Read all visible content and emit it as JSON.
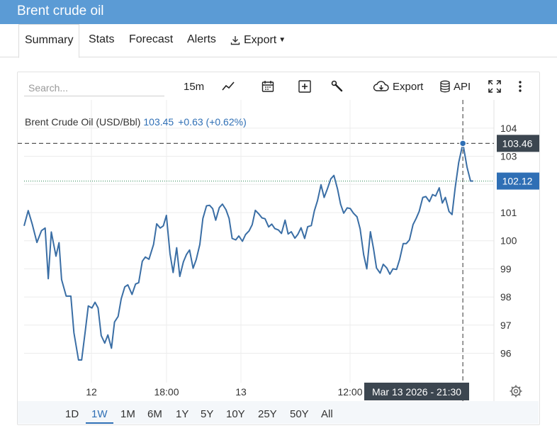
{
  "app": {
    "title": "Brent crude oil"
  },
  "tabs": [
    {
      "label": "Summary",
      "active": true
    },
    {
      "label": "Stats"
    },
    {
      "label": "Forecast"
    },
    {
      "label": "Alerts"
    },
    {
      "label": "Export",
      "icon": "download-icon",
      "dropdown": true
    }
  ],
  "toolbar": {
    "search_placeholder": "Search...",
    "interval": "15m",
    "export_label": "Export",
    "api_label": "API",
    "icons": [
      "line-chart-icon",
      "calendar-icon",
      "add-icon",
      "wrench-icon",
      "cloud-download-icon",
      "database-icon",
      "fullscreen-icon",
      "more-vert-icon",
      "settings-icon"
    ]
  },
  "chart_header": {
    "name": "Brent Crude Oil (USD/Bbl)",
    "price": "103.45",
    "change": "+0.63 (+0.62%)"
  },
  "crosshair": {
    "price_label": "103.46",
    "time_label": "Mar 13 2026 - 21:30"
  },
  "last_price": {
    "label": "102.12",
    "value": 102.12
  },
  "ranges": [
    {
      "label": "1D"
    },
    {
      "label": "1W",
      "active": true
    },
    {
      "label": "1M"
    },
    {
      "label": "6M"
    },
    {
      "label": "1Y"
    },
    {
      "label": "5Y"
    },
    {
      "label": "10Y"
    },
    {
      "label": "25Y"
    },
    {
      "label": "50Y"
    },
    {
      "label": "All"
    }
  ],
  "colors": {
    "title_bar": "#5b9bd5",
    "line": "#3a6ea5",
    "accent": "#2f6fb5",
    "label_dark": "#3c4650"
  },
  "chart_data": {
    "type": "line",
    "title": "Brent Crude Oil (USD/Bbl)",
    "ylim": [
      95,
      105
    ],
    "y_ticks": [
      "96",
      "97",
      "98",
      "99",
      "100",
      "101",
      "102",
      "103",
      "104"
    ],
    "x_ticks": [
      "12",
      "18:00",
      "13",
      "12:00"
    ],
    "grid": true,
    "series": [
      {
        "name": "Brent Crude Oil (USD/Bbl)",
        "points": [
          [
            0.0,
            100.53
          ],
          [
            0.8,
            101.07
          ],
          [
            1.6,
            100.58
          ],
          [
            2.5,
            99.94
          ],
          [
            3.4,
            100.36
          ],
          [
            4.1,
            100.45
          ],
          [
            4.7,
            98.65
          ],
          [
            5.3,
            100.31
          ],
          [
            6.2,
            99.45
          ],
          [
            6.8,
            99.93
          ],
          [
            7.3,
            98.62
          ],
          [
            8.2,
            98.03
          ],
          [
            9.1,
            98.03
          ],
          [
            9.7,
            96.73
          ],
          [
            10.6,
            95.76
          ],
          [
            11.2,
            95.76
          ],
          [
            11.9,
            96.78
          ],
          [
            12.5,
            97.68
          ],
          [
            13.2,
            97.61
          ],
          [
            13.8,
            97.81
          ],
          [
            14.4,
            97.61
          ],
          [
            15.0,
            96.63
          ],
          [
            15.7,
            96.36
          ],
          [
            16.3,
            96.65
          ],
          [
            17.0,
            96.18
          ],
          [
            17.6,
            97.11
          ],
          [
            18.3,
            97.31
          ],
          [
            18.9,
            97.93
          ],
          [
            19.6,
            98.36
          ],
          [
            20.2,
            98.43
          ],
          [
            21.0,
            98.09
          ],
          [
            21.7,
            98.46
          ],
          [
            22.3,
            98.51
          ],
          [
            23.0,
            99.27
          ],
          [
            23.6,
            99.42
          ],
          [
            24.3,
            99.34
          ],
          [
            25.2,
            99.87
          ],
          [
            25.8,
            100.6
          ],
          [
            26.5,
            100.45
          ],
          [
            27.1,
            100.53
          ],
          [
            27.7,
            100.9
          ],
          [
            28.4,
            99.54
          ],
          [
            29.0,
            98.87
          ],
          [
            29.7,
            99.75
          ],
          [
            30.3,
            98.73
          ],
          [
            31.0,
            99.25
          ],
          [
            31.6,
            99.51
          ],
          [
            32.2,
            99.67
          ],
          [
            32.9,
            99.02
          ],
          [
            33.5,
            99.33
          ],
          [
            34.2,
            99.87
          ],
          [
            34.8,
            100.79
          ],
          [
            35.5,
            101.24
          ],
          [
            36.1,
            101.26
          ],
          [
            36.7,
            101.14
          ],
          [
            37.3,
            100.73
          ],
          [
            38.0,
            101.18
          ],
          [
            38.6,
            101.3
          ],
          [
            39.3,
            101.1
          ],
          [
            39.9,
            100.79
          ],
          [
            40.5,
            100.08
          ],
          [
            41.2,
            100.03
          ],
          [
            41.8,
            100.17
          ],
          [
            42.5,
            99.98
          ],
          [
            43.1,
            100.22
          ],
          [
            43.8,
            100.35
          ],
          [
            44.4,
            100.57
          ],
          [
            45.0,
            101.08
          ],
          [
            45.7,
            100.95
          ],
          [
            46.3,
            100.81
          ],
          [
            46.9,
            100.78
          ],
          [
            47.6,
            100.49
          ],
          [
            48.2,
            100.59
          ],
          [
            48.8,
            100.43
          ],
          [
            49.5,
            100.38
          ],
          [
            50.1,
            100.26
          ],
          [
            50.8,
            100.73
          ],
          [
            51.4,
            100.24
          ],
          [
            52.0,
            100.32
          ],
          [
            52.7,
            100.09
          ],
          [
            53.3,
            100.23
          ],
          [
            53.9,
            100.46
          ],
          [
            54.6,
            100.08
          ],
          [
            55.2,
            100.5
          ],
          [
            55.9,
            100.54
          ],
          [
            56.5,
            101.06
          ],
          [
            57.1,
            101.42
          ],
          [
            57.8,
            101.99
          ],
          [
            58.4,
            101.54
          ],
          [
            59.0,
            101.83
          ],
          [
            59.7,
            102.2
          ],
          [
            60.3,
            102.32
          ],
          [
            61.0,
            101.84
          ],
          [
            61.6,
            101.3
          ],
          [
            62.2,
            100.98
          ],
          [
            62.9,
            101.17
          ],
          [
            63.5,
            101.14
          ],
          [
            64.1,
            100.98
          ],
          [
            64.8,
            100.85
          ],
          [
            65.4,
            100.42
          ],
          [
            66.1,
            99.5
          ],
          [
            66.7,
            99.0
          ],
          [
            67.4,
            100.32
          ],
          [
            68.0,
            99.73
          ],
          [
            68.6,
            99.03
          ],
          [
            69.3,
            98.85
          ],
          [
            69.9,
            99.16
          ],
          [
            70.6,
            99.03
          ],
          [
            71.2,
            98.81
          ],
          [
            71.8,
            99.0
          ],
          [
            72.5,
            98.98
          ],
          [
            73.1,
            99.34
          ],
          [
            73.8,
            99.9
          ],
          [
            74.4,
            99.9
          ],
          [
            75.0,
            100.03
          ],
          [
            75.7,
            100.57
          ],
          [
            76.3,
            100.79
          ],
          [
            76.9,
            101.04
          ],
          [
            77.6,
            101.54
          ],
          [
            78.2,
            101.57
          ],
          [
            78.9,
            101.39
          ],
          [
            79.5,
            101.64
          ],
          [
            80.1,
            101.59
          ],
          [
            80.8,
            101.88
          ],
          [
            81.4,
            101.34
          ],
          [
            82.0,
            101.54
          ],
          [
            82.7,
            101.04
          ],
          [
            83.3,
            100.93
          ],
          [
            83.9,
            101.88
          ],
          [
            84.6,
            102.78
          ],
          [
            85.4,
            103.46
          ],
          [
            86.2,
            102.62
          ],
          [
            86.9,
            102.12
          ],
          [
            87.4,
            102.12
          ]
        ]
      }
    ]
  }
}
